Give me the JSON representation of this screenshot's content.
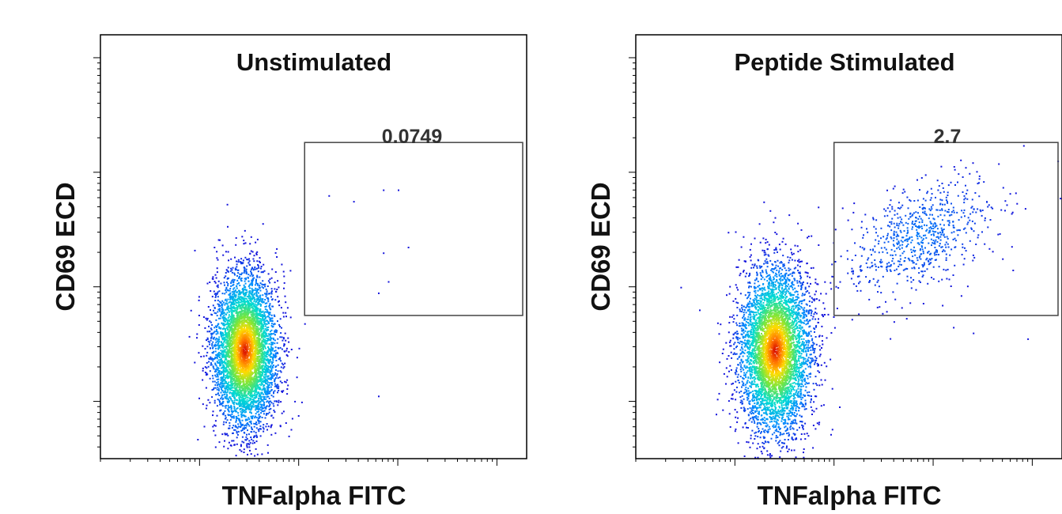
{
  "chart_data": [
    {
      "type": "scatter",
      "title": "Unstimulated",
      "xlabel": "TNFalpha FITC",
      "ylabel": "CD69 ECD",
      "x_scale": "log",
      "y_scale": "log",
      "xlim": [
        -1,
        3.3
      ],
      "ylim": [
        -0.5,
        3.2
      ],
      "major_x_ticks": [
        0,
        1,
        2,
        3
      ],
      "major_y_ticks": [
        0,
        1,
        2,
        3
      ],
      "tick_labels_shown": false,
      "colormap": "density (blue to red)",
      "gate": {
        "x_range": [
          1.06,
          3.3
        ],
        "y_range": [
          0.75,
          2.26
        ],
        "percent": "0.0749"
      },
      "population": {
        "main_cluster": {
          "x_center": 0.45,
          "y_center": 0.45,
          "x_spread": 0.16,
          "y_spread": 0.33,
          "weight": 1
        }
      },
      "outlier_points": [
        {
          "x": 1.3,
          "y": 1.8
        },
        {
          "x": 1.55,
          "y": 1.75
        },
        {
          "x": 1.85,
          "y": 1.85
        },
        {
          "x": 2.0,
          "y": 1.85
        },
        {
          "x": 1.85,
          "y": 1.3
        },
        {
          "x": 1.9,
          "y": 1.05
        },
        {
          "x": 1.8,
          "y": 0.95
        },
        {
          "x": 2.1,
          "y": 1.35
        },
        {
          "x": 1.8,
          "y": 0.05
        }
      ]
    },
    {
      "type": "scatter",
      "title": "Peptide Stimulated",
      "xlabel": "TNFalpha FITC",
      "ylabel": "CD69 ECD",
      "x_scale": "log",
      "y_scale": "log",
      "xlim": [
        -1,
        3.3
      ],
      "ylim": [
        -0.5,
        3.2
      ],
      "major_x_ticks": [
        0,
        1,
        2,
        3
      ],
      "major_y_ticks": [
        0,
        1,
        2,
        3
      ],
      "tick_labels_shown": false,
      "colormap": "density (blue to red)",
      "gate": {
        "x_range": [
          1.0,
          3.3
        ],
        "y_range": [
          0.75,
          2.26
        ],
        "percent": "2.7"
      },
      "population": {
        "main_cluster": {
          "x_center": 0.4,
          "y_center": 0.45,
          "x_spread": 0.18,
          "y_spread": 0.36,
          "weight": 1
        },
        "activated_cluster": {
          "x_center": 1.85,
          "y_center": 1.45,
          "x_spread": 0.38,
          "y_spread": 0.22,
          "weight": 0.14
        }
      },
      "outlier_points": [
        {
          "x": 2.8,
          "y": 1.15
        },
        {
          "x": 2.4,
          "y": 0.6
        },
        {
          "x": 2.95,
          "y": 0.55
        },
        {
          "x": 2.2,
          "y": 0.65
        },
        {
          "x": 1.6,
          "y": 0.7
        },
        {
          "x": -0.55,
          "y": 1.0
        }
      ]
    }
  ]
}
